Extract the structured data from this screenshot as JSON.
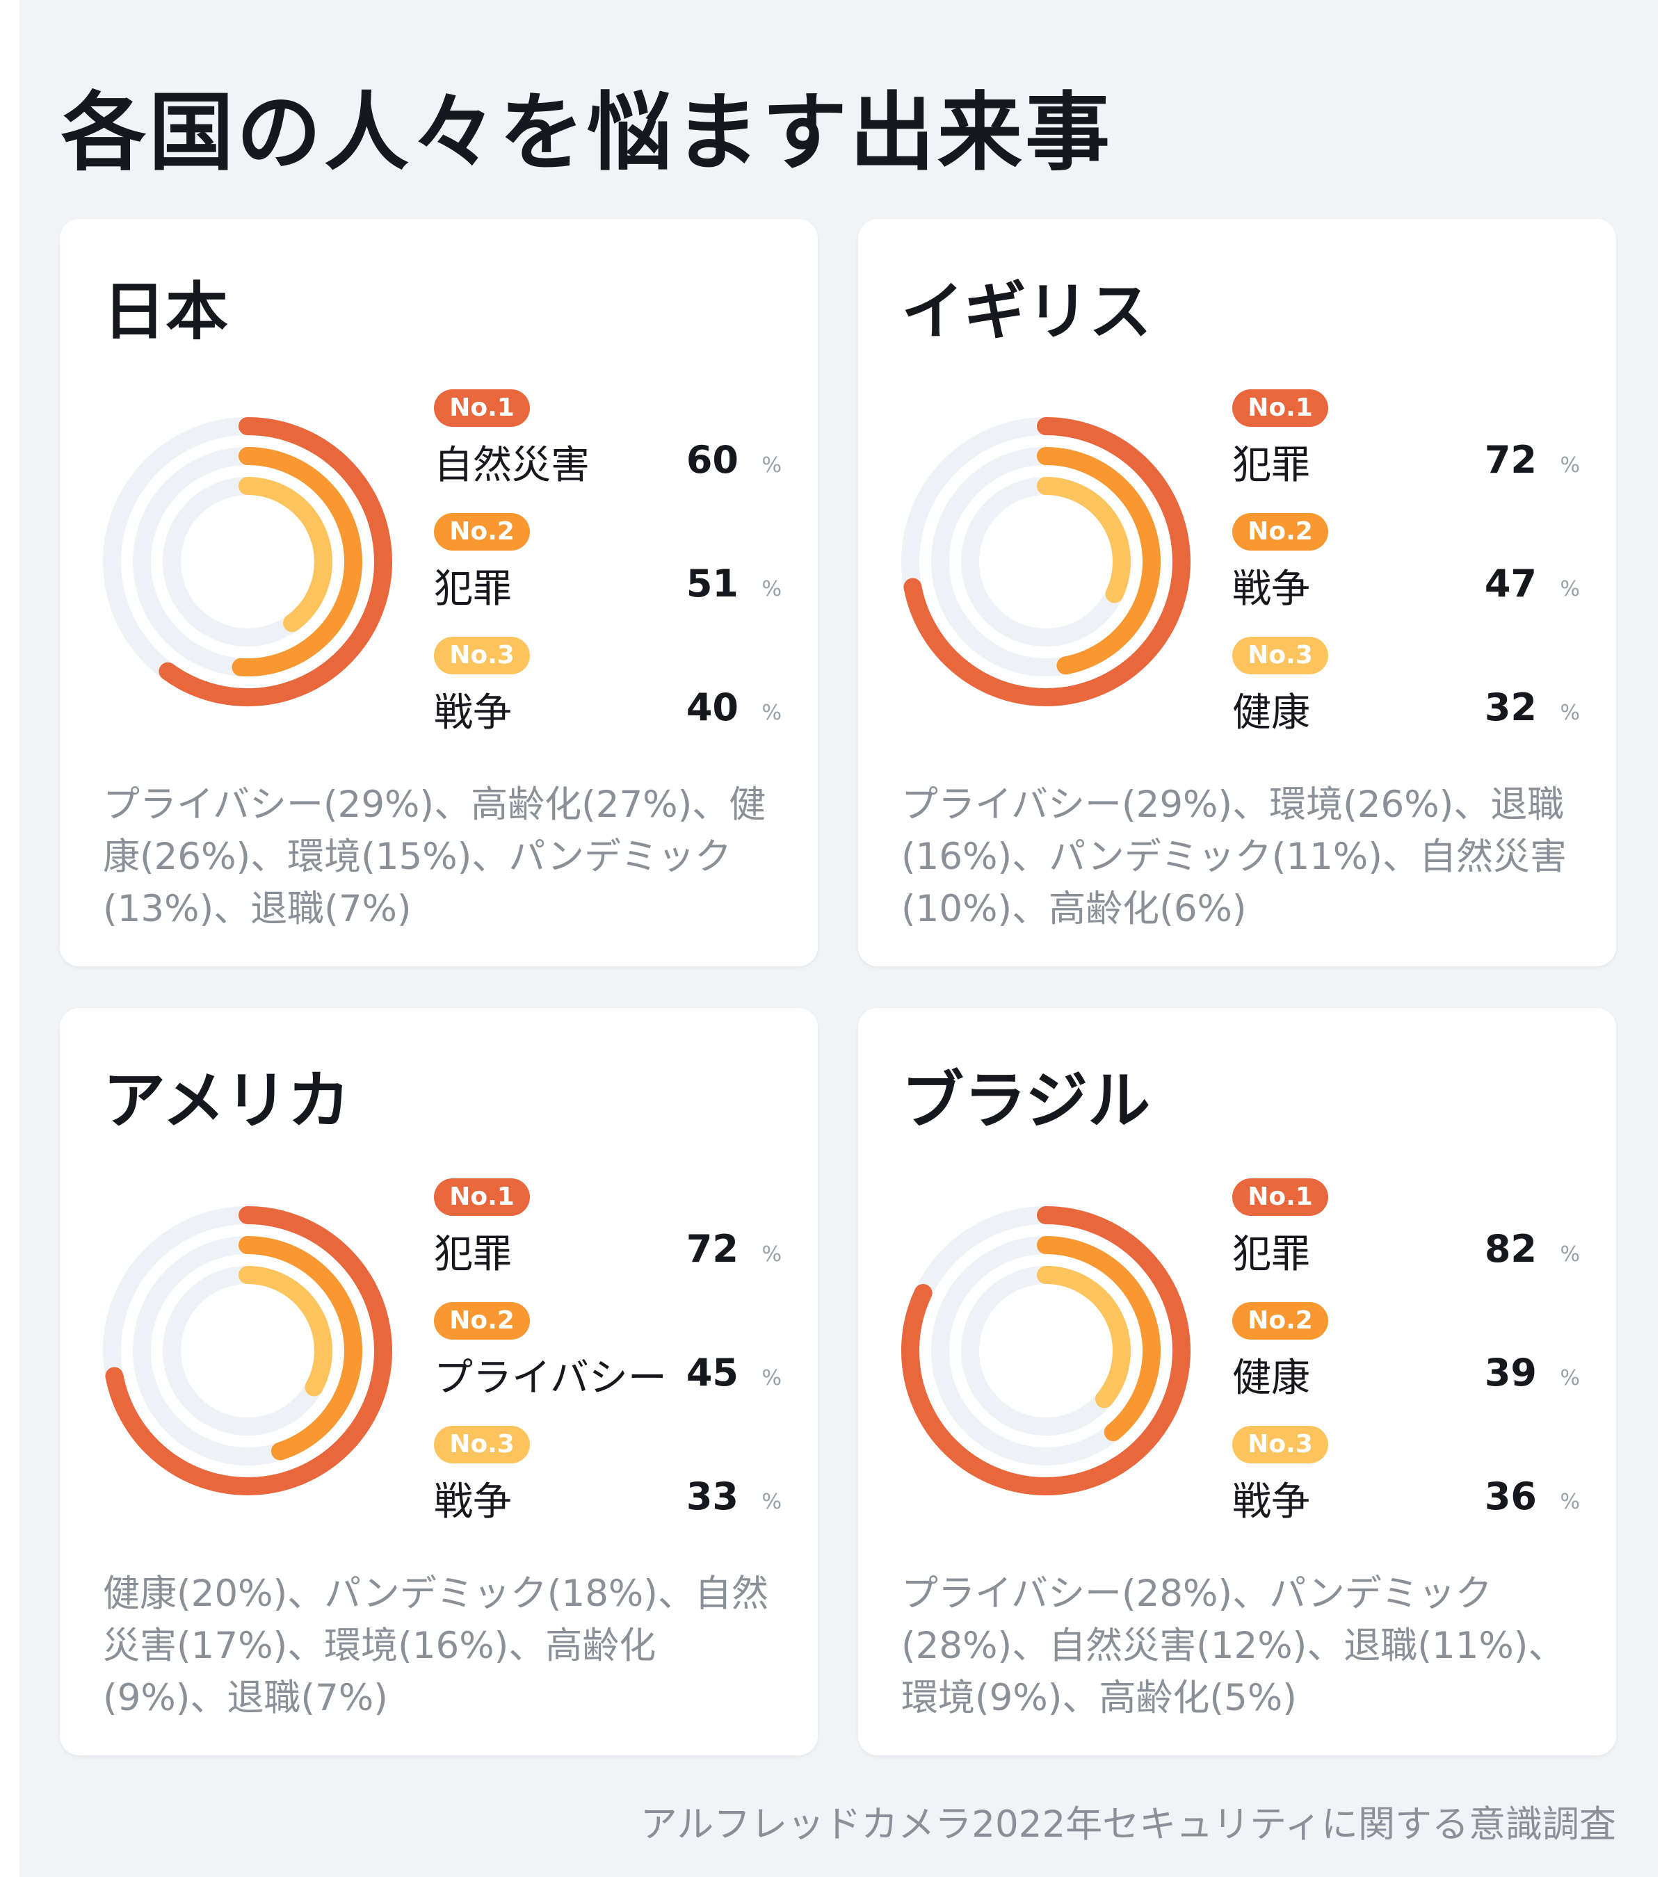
{
  "title": "各国の人々を悩ます出来事",
  "source": "アルフレッドカメラ2022年セキュリティに関する意識調査",
  "colors": {
    "rank1": "#e8673c",
    "rank2": "#f99730",
    "rank3": "#fdc45e",
    "track": "#eef1f5"
  },
  "badges": [
    "No.1",
    "No.2",
    "No.3"
  ],
  "unit": "%",
  "chart_data": [
    {
      "type": "radial-bar",
      "country": "日本",
      "top": [
        {
          "label": "自然災害",
          "value": 60
        },
        {
          "label": "犯罪",
          "value": 51
        },
        {
          "label": "戦争",
          "value": 40
        }
      ],
      "others": "プライバシー(29%)、高齢化(27%)、健康(26%)、環境(15%)、パンデミック(13%)、退職(7%)"
    },
    {
      "type": "radial-bar",
      "country": "イギリス",
      "top": [
        {
          "label": "犯罪",
          "value": 72
        },
        {
          "label": "戦争",
          "value": 47
        },
        {
          "label": "健康",
          "value": 32
        }
      ],
      "others": "プライバシー(29%)、環境(26%)、退職(16%)、パンデミック(11%)、自然災害(10%)、高齢化(6%)"
    },
    {
      "type": "radial-bar",
      "country": "アメリカ",
      "top": [
        {
          "label": "犯罪",
          "value": 72
        },
        {
          "label": "プライバシー",
          "value": 45
        },
        {
          "label": "戦争",
          "value": 33
        }
      ],
      "others": "健康(20%)、パンデミック(18%)、自然災害(17%)、環境(16%)、高齢化(9%)、退職(7%)"
    },
    {
      "type": "radial-bar",
      "country": "ブラジル",
      "top": [
        {
          "label": "犯罪",
          "value": 82
        },
        {
          "label": "健康",
          "value": 39
        },
        {
          "label": "戦争",
          "value": 36
        }
      ],
      "others": "プライバシー(28%)、パンデミック(28%)、自然災害(12%)、退職(11%)、環境(9%)、高齢化(5%)"
    }
  ]
}
